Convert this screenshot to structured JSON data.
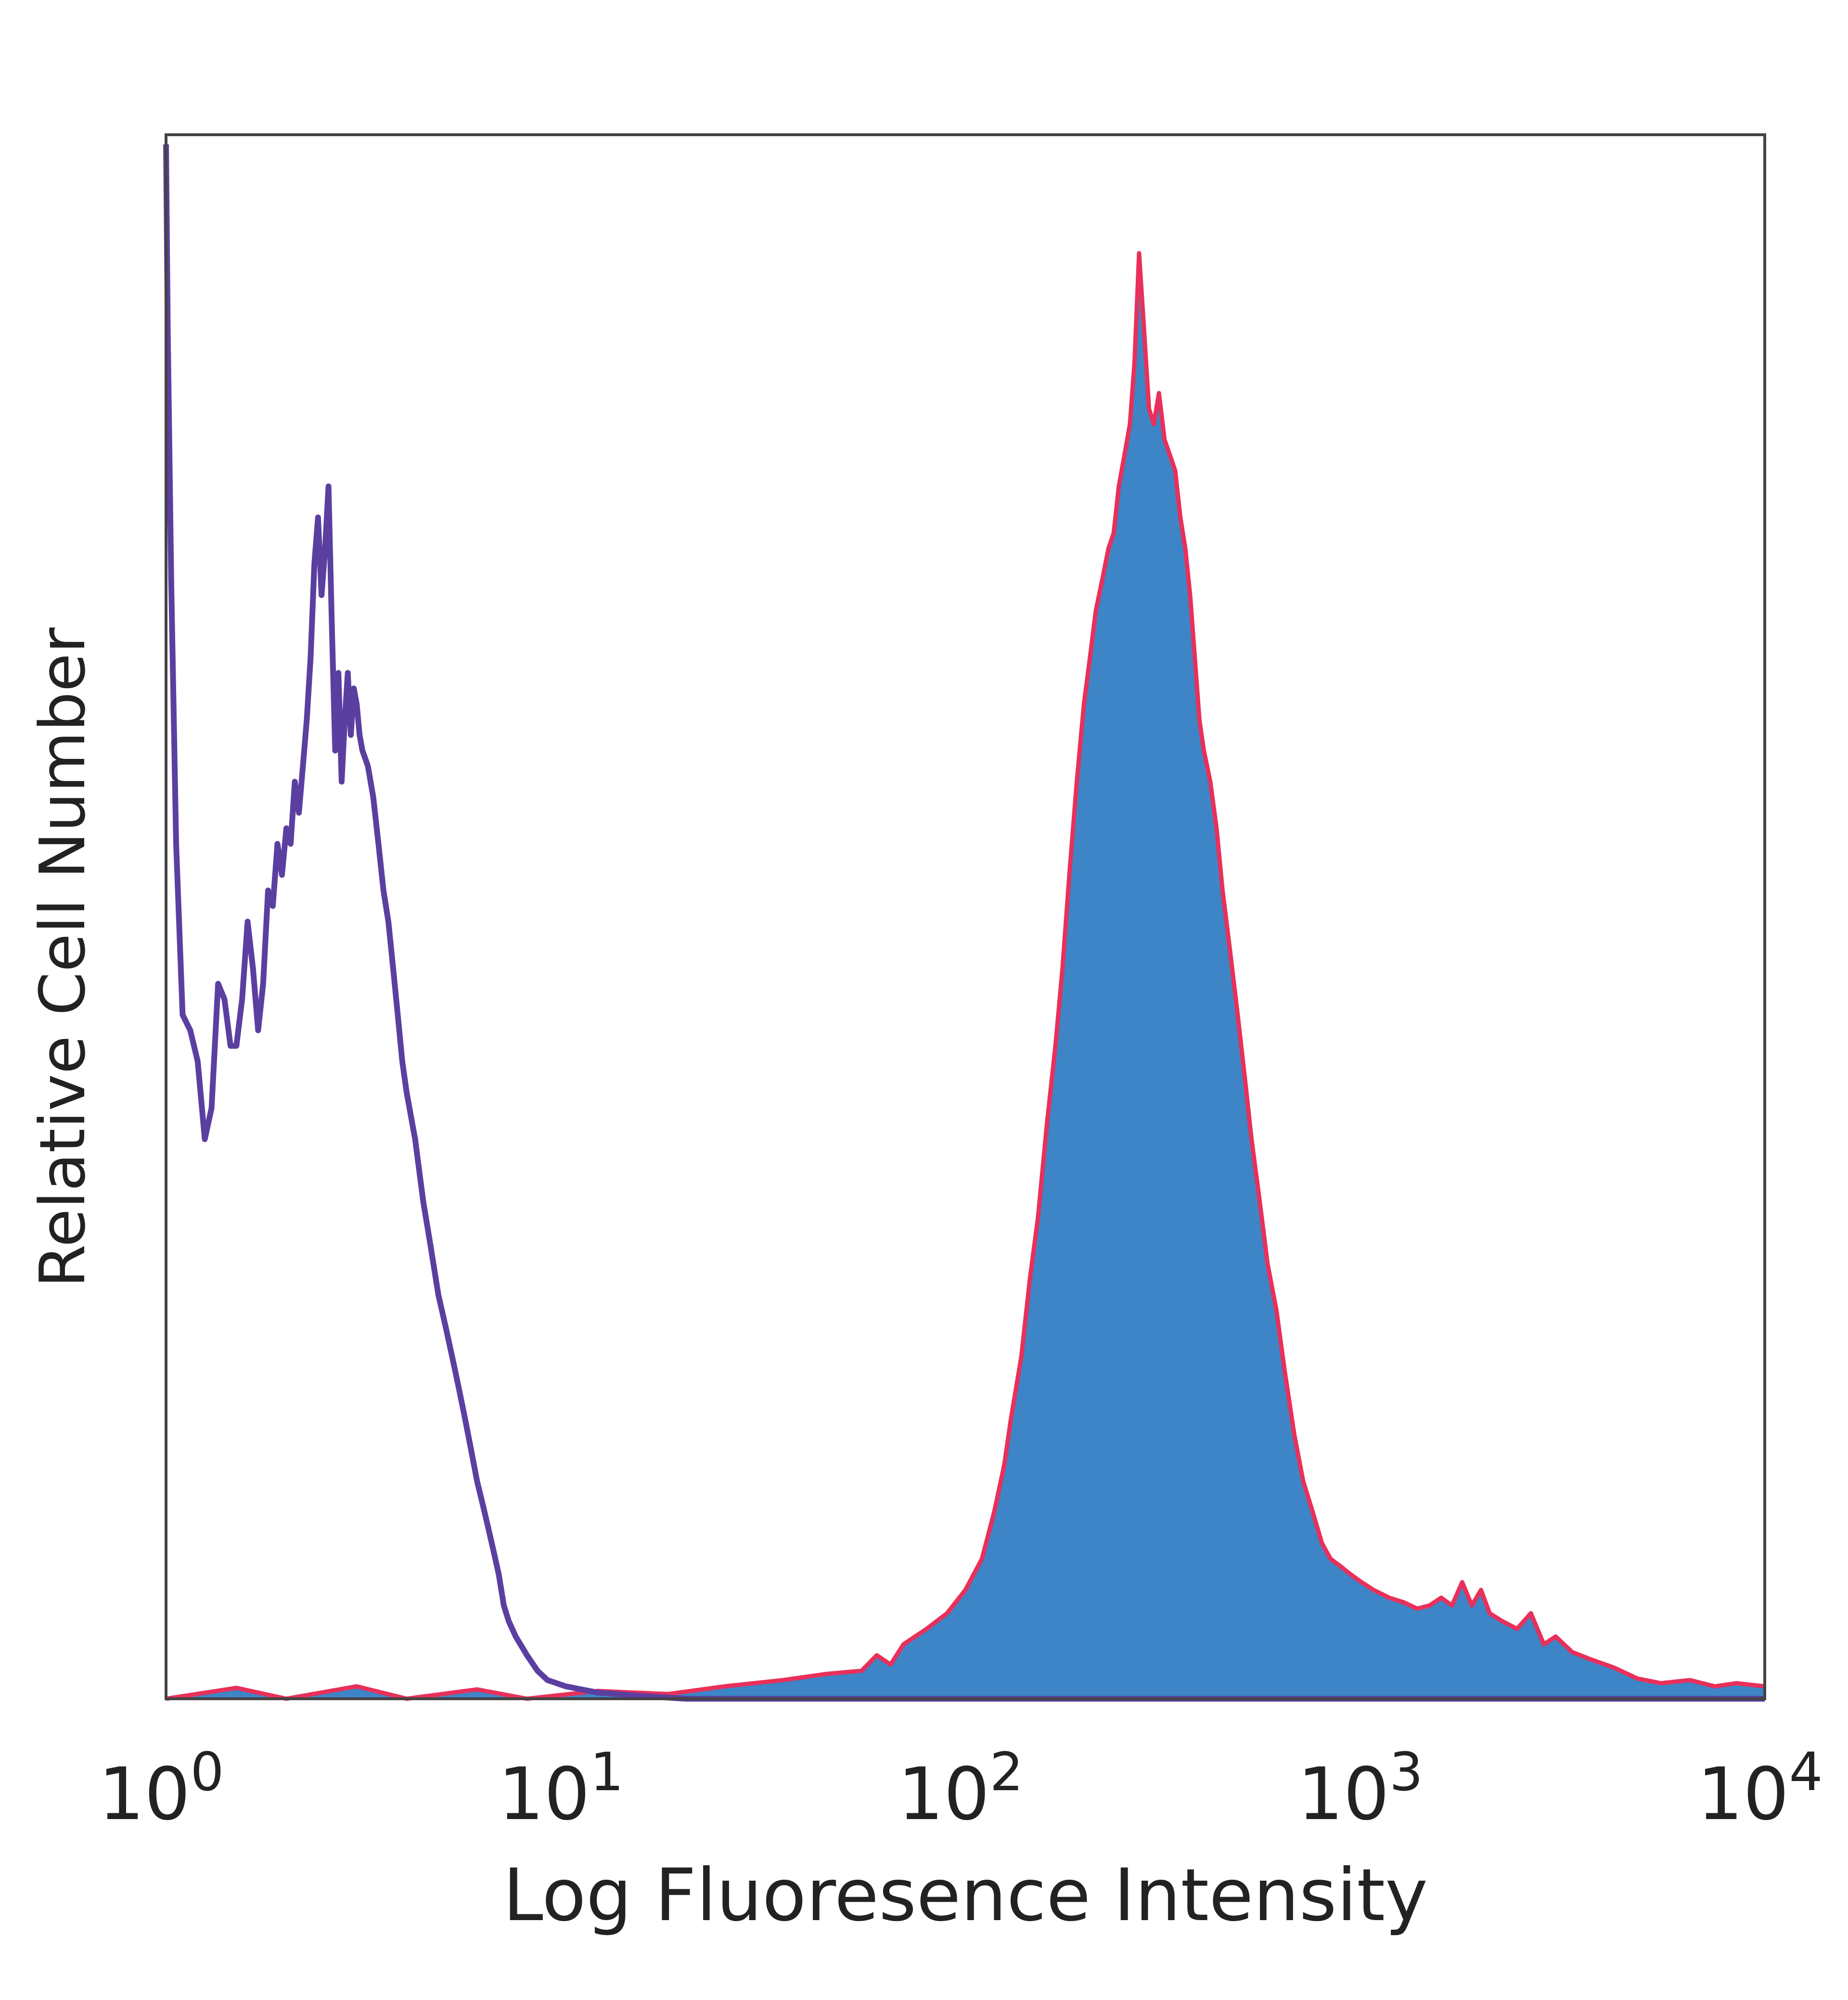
{
  "chart_data": {
    "type": "area",
    "title": "",
    "xlabel": "Log Fluoresence Intensity",
    "ylabel": "Relative Cell Number",
    "x_scale": "log",
    "xlim": [
      1,
      10000
    ],
    "ylim": [
      0,
      1.0
    ],
    "x_ticks": [
      {
        "value": 1,
        "base": "10",
        "exp": "0"
      },
      {
        "value": 10,
        "base": "10",
        "exp": "1"
      },
      {
        "value": 100,
        "base": "10",
        "exp": "2"
      },
      {
        "value": 1000,
        "base": "10",
        "exp": "3"
      },
      {
        "value": 10000,
        "base": "10",
        "exp": "4"
      }
    ],
    "grid": false,
    "legend": "none",
    "series": [
      {
        "style": "outline",
        "color": "#5b3fa0",
        "points": [
          [
            1.0,
            1.0
          ],
          [
            1.01,
            0.88
          ],
          [
            1.03,
            0.72
          ],
          [
            1.06,
            0.55
          ],
          [
            1.1,
            0.44
          ],
          [
            1.15,
            0.43
          ],
          [
            1.2,
            0.41
          ],
          [
            1.25,
            0.36
          ],
          [
            1.3,
            0.38
          ],
          [
            1.35,
            0.46
          ],
          [
            1.4,
            0.45
          ],
          [
            1.45,
            0.42
          ],
          [
            1.5,
            0.42
          ],
          [
            1.55,
            0.45
          ],
          [
            1.6,
            0.5
          ],
          [
            1.65,
            0.47
          ],
          [
            1.7,
            0.43
          ],
          [
            1.75,
            0.46
          ],
          [
            1.8,
            0.52
          ],
          [
            1.85,
            0.51
          ],
          [
            1.9,
            0.55
          ],
          [
            1.95,
            0.53
          ],
          [
            2.0,
            0.56
          ],
          [
            2.05,
            0.55
          ],
          [
            2.1,
            0.59
          ],
          [
            2.15,
            0.57
          ],
          [
            2.2,
            0.6
          ],
          [
            2.25,
            0.63
          ],
          [
            2.3,
            0.67
          ],
          [
            2.35,
            0.73
          ],
          [
            2.4,
            0.76
          ],
          [
            2.45,
            0.71
          ],
          [
            2.5,
            0.74
          ],
          [
            2.55,
            0.78
          ],
          [
            2.6,
            0.69
          ],
          [
            2.65,
            0.61
          ],
          [
            2.7,
            0.66
          ],
          [
            2.75,
            0.59
          ],
          [
            2.8,
            0.63
          ],
          [
            2.85,
            0.66
          ],
          [
            2.9,
            0.62
          ],
          [
            2.95,
            0.65
          ],
          [
            3.0,
            0.64
          ],
          [
            3.05,
            0.62
          ],
          [
            3.1,
            0.61
          ],
          [
            3.2,
            0.6
          ],
          [
            3.3,
            0.58
          ],
          [
            3.4,
            0.55
          ],
          [
            3.5,
            0.52
          ],
          [
            3.6,
            0.5
          ],
          [
            3.7,
            0.47
          ],
          [
            3.8,
            0.44
          ],
          [
            3.9,
            0.41
          ],
          [
            4.0,
            0.39
          ],
          [
            4.2,
            0.36
          ],
          [
            4.4,
            0.32
          ],
          [
            4.6,
            0.29
          ],
          [
            4.8,
            0.26
          ],
          [
            5.0,
            0.24
          ],
          [
            5.2,
            0.22
          ],
          [
            5.4,
            0.2
          ],
          [
            5.6,
            0.18
          ],
          [
            5.8,
            0.16
          ],
          [
            6.0,
            0.14
          ],
          [
            6.2,
            0.125
          ],
          [
            6.4,
            0.11
          ],
          [
            6.6,
            0.095
          ],
          [
            6.8,
            0.08
          ],
          [
            7.0,
            0.06
          ],
          [
            7.2,
            0.05
          ],
          [
            7.5,
            0.04
          ],
          [
            8.0,
            0.028
          ],
          [
            8.5,
            0.018
          ],
          [
            9.0,
            0.012
          ],
          [
            10.0,
            0.008
          ],
          [
            12.0,
            0.004
          ],
          [
            15.0,
            0.002
          ],
          [
            20.0,
            0.0
          ],
          [
            10000.0,
            0.0
          ]
        ]
      },
      {
        "style": "filled",
        "color": "#3d85c6",
        "edge_color": "#e8305a",
        "points": [
          [
            1.0,
            0.0
          ],
          [
            1.5,
            0.007
          ],
          [
            2.0,
            0.0
          ],
          [
            3.0,
            0.008
          ],
          [
            4.0,
            0.0
          ],
          [
            6.0,
            0.006
          ],
          [
            8.0,
            0.0
          ],
          [
            12.0,
            0.005
          ],
          [
            18.0,
            0.003
          ],
          [
            25.0,
            0.008
          ],
          [
            35.0,
            0.012
          ],
          [
            45.0,
            0.016
          ],
          [
            55.0,
            0.018
          ],
          [
            60.0,
            0.028
          ],
          [
            65.0,
            0.022
          ],
          [
            70.0,
            0.035
          ],
          [
            80.0,
            0.045
          ],
          [
            90.0,
            0.055
          ],
          [
            100.0,
            0.07
          ],
          [
            110.0,
            0.09
          ],
          [
            118.0,
            0.12
          ],
          [
            125.0,
            0.15
          ],
          [
            130.0,
            0.18
          ],
          [
            138.0,
            0.22
          ],
          [
            145.0,
            0.27
          ],
          [
            152.0,
            0.31
          ],
          [
            160.0,
            0.37
          ],
          [
            168.0,
            0.42
          ],
          [
            175.0,
            0.47
          ],
          [
            182.0,
            0.53
          ],
          [
            190.0,
            0.59
          ],
          [
            198.0,
            0.64
          ],
          [
            205.0,
            0.67
          ],
          [
            212.0,
            0.7
          ],
          [
            220.0,
            0.72
          ],
          [
            228.0,
            0.74
          ],
          [
            235.0,
            0.75
          ],
          [
            242.0,
            0.78
          ],
          [
            250.0,
            0.8
          ],
          [
            258.0,
            0.82
          ],
          [
            265.0,
            0.86
          ],
          [
            272.0,
            0.93
          ],
          [
            280.0,
            0.88
          ],
          [
            288.0,
            0.83
          ],
          [
            296.0,
            0.82
          ],
          [
            305.0,
            0.84
          ],
          [
            315.0,
            0.81
          ],
          [
            325.0,
            0.8
          ],
          [
            335.0,
            0.79
          ],
          [
            345.0,
            0.76
          ],
          [
            355.0,
            0.74
          ],
          [
            365.0,
            0.71
          ],
          [
            375.0,
            0.67
          ],
          [
            385.0,
            0.63
          ],
          [
            395.0,
            0.61
          ],
          [
            410.0,
            0.59
          ],
          [
            425.0,
            0.56
          ],
          [
            440.0,
            0.52
          ],
          [
            460.0,
            0.48
          ],
          [
            480.0,
            0.44
          ],
          [
            500.0,
            0.4
          ],
          [
            520.0,
            0.36
          ],
          [
            545.0,
            0.32
          ],
          [
            570.0,
            0.28
          ],
          [
            600.0,
            0.25
          ],
          [
            630.0,
            0.21
          ],
          [
            665.0,
            0.17
          ],
          [
            700.0,
            0.14
          ],
          [
            740.0,
            0.12
          ],
          [
            780.0,
            0.1
          ],
          [
            820.0,
            0.09
          ],
          [
            870.0,
            0.085
          ],
          [
            920.0,
            0.08
          ],
          [
            980.0,
            0.075
          ],
          [
            1050.0,
            0.07
          ],
          [
            1150.0,
            0.065
          ],
          [
            1250.0,
            0.062
          ],
          [
            1350.0,
            0.058
          ],
          [
            1450.0,
            0.06
          ],
          [
            1550.0,
            0.065
          ],
          [
            1650.0,
            0.06
          ],
          [
            1750.0,
            0.075
          ],
          [
            1850.0,
            0.06
          ],
          [
            1950.0,
            0.07
          ],
          [
            2050.0,
            0.055
          ],
          [
            2200.0,
            0.05
          ],
          [
            2400.0,
            0.045
          ],
          [
            2600.0,
            0.055
          ],
          [
            2800.0,
            0.035
          ],
          [
            3000.0,
            0.04
          ],
          [
            3300.0,
            0.03
          ],
          [
            3700.0,
            0.025
          ],
          [
            4200.0,
            0.02
          ],
          [
            4800.0,
            0.013
          ],
          [
            5500.0,
            0.01
          ],
          [
            6500.0,
            0.012
          ],
          [
            7500.0,
            0.008
          ],
          [
            8500.0,
            0.01
          ],
          [
            10000.0,
            0.008
          ]
        ]
      }
    ]
  }
}
